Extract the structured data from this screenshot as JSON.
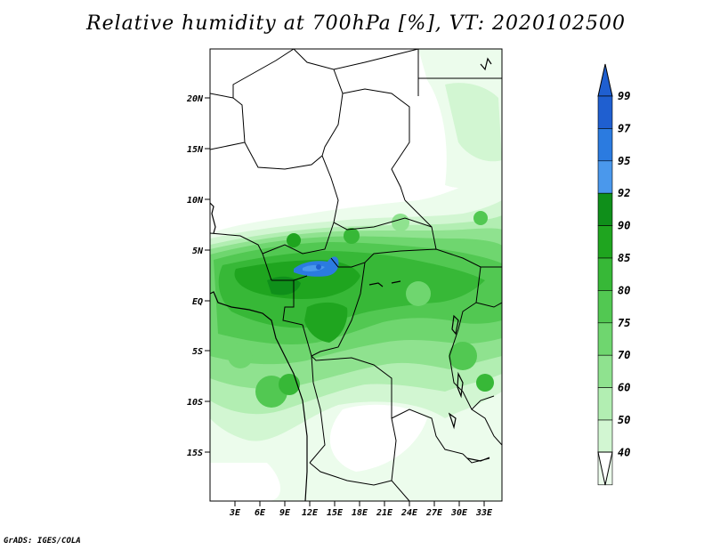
{
  "title": "Relative humidity at 700hPa [%], VT: 2020102500",
  "credit": "GrADS: IGES/COLA",
  "map": {
    "lat_labels": [
      "20N",
      "15N",
      "10N",
      "5N",
      "EQ",
      "5S",
      "10S",
      "15S"
    ],
    "lon_labels": [
      "3E",
      "6E",
      "9E",
      "12E",
      "15E",
      "18E",
      "21E",
      "24E",
      "27E",
      "30E",
      "33E"
    ],
    "lat_range": [
      -20,
      24
    ],
    "lon_range": [
      0,
      35
    ]
  },
  "legend": {
    "levels": [
      "99",
      "97",
      "95",
      "92",
      "90",
      "85",
      "80",
      "75",
      "70",
      "60",
      "50",
      "40"
    ],
    "colors": [
      "#1f5fd0",
      "#2b7be0",
      "#4a98ec",
      "#0f8f1a",
      "#1fa51f",
      "#37b837",
      "#52c852",
      "#6fd66f",
      "#8fe28f",
      "#b2eeb2",
      "#d2f6d2",
      "#ecfcec"
    ],
    "accent_blue": "#2b7be0",
    "accent_green": "#37b837"
  }
}
